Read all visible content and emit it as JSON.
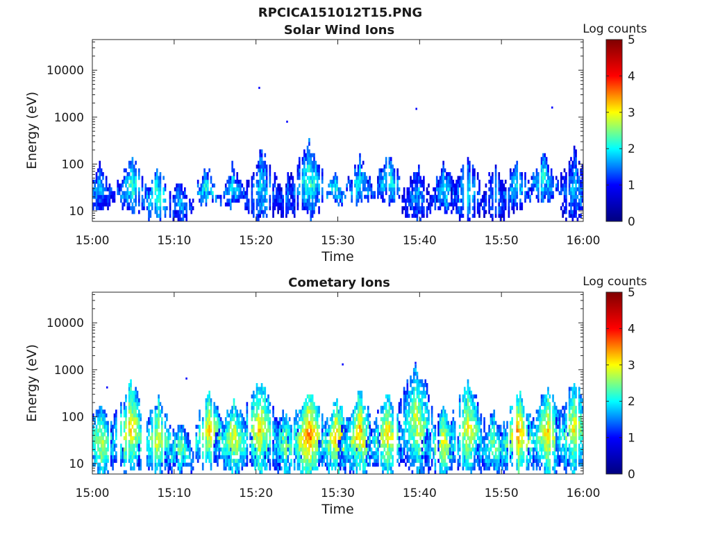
{
  "figure": {
    "title": "RPCICA151012T15.PNG"
  },
  "colormap": {
    "name": "jet",
    "stops": [
      "#00007f",
      "#0000ff",
      "#00ffff",
      "#ffff00",
      "#ff0000",
      "#7f0000"
    ]
  },
  "chart_data": [
    {
      "type": "heatmap",
      "title": "Solar Wind Ions",
      "xlabel": "Time",
      "ylabel": "Energy (eV)",
      "x_range": [
        "15:00",
        "16:00"
      ],
      "xticks": [
        "15:00",
        "15:10",
        "15:20",
        "15:30",
        "15:40",
        "15:50",
        "16:00"
      ],
      "y_scale": "log",
      "ylim": [
        6,
        45000
      ],
      "yticks": [
        {
          "value": 10,
          "label": "10"
        },
        {
          "value": 100,
          "label": "100"
        },
        {
          "value": 1000,
          "label": "1000"
        },
        {
          "value": 10000,
          "label": "10000"
        }
      ],
      "colorbar": {
        "label": "Log counts",
        "range": [
          0,
          5
        ],
        "ticks": [
          "0",
          "1",
          "2",
          "3",
          "4",
          "5"
        ]
      },
      "grid": false,
      "bursts": [
        {
          "t": 0.8,
          "e_lo": 10,
          "e_hi": 100,
          "peak": 1.8
        },
        {
          "t": 4.7,
          "e_lo": 10,
          "e_hi": 150,
          "peak": 2.3
        },
        {
          "t": 8.0,
          "e_lo": 6,
          "e_hi": 80,
          "peak": 2.4
        },
        {
          "t": 10.5,
          "e_lo": 6,
          "e_hi": 50,
          "peak": 1.8
        },
        {
          "t": 13.8,
          "e_lo": 15,
          "e_hi": 80,
          "peak": 2.2
        },
        {
          "t": 17.0,
          "e_lo": 12,
          "e_hi": 90,
          "peak": 2.0
        },
        {
          "t": 20.5,
          "e_lo": 6,
          "e_hi": 180,
          "peak": 2.0
        },
        {
          "t": 23.8,
          "e_lo": 8,
          "e_hi": 60,
          "peak": 1.6
        },
        {
          "t": 26.3,
          "e_lo": 8,
          "e_hi": 280,
          "peak": 2.3
        },
        {
          "t": 29.5,
          "e_lo": 15,
          "e_hi": 60,
          "peak": 2.1
        },
        {
          "t": 32.5,
          "e_lo": 15,
          "e_hi": 120,
          "peak": 2.1
        },
        {
          "t": 36.2,
          "e_lo": 15,
          "e_hi": 180,
          "peak": 2.2
        },
        {
          "t": 39.5,
          "e_lo": 6,
          "e_hi": 90,
          "peak": 1.7
        },
        {
          "t": 43.0,
          "e_lo": 10,
          "e_hi": 100,
          "peak": 2.0
        },
        {
          "t": 45.8,
          "e_lo": 6,
          "e_hi": 160,
          "peak": 2.0
        },
        {
          "t": 49.2,
          "e_lo": 6,
          "e_hi": 90,
          "peak": 1.7
        },
        {
          "t": 51.8,
          "e_lo": 10,
          "e_hi": 120,
          "peak": 2.0
        },
        {
          "t": 55.0,
          "e_lo": 15,
          "e_hi": 160,
          "peak": 2.2
        },
        {
          "t": 58.8,
          "e_lo": 6,
          "e_hi": 180,
          "peak": 1.8
        }
      ],
      "isolated_points": [
        {
          "t": 20.4,
          "e": 4200
        },
        {
          "t": 23.8,
          "e": 800
        },
        {
          "t": 39.6,
          "e": 1500
        },
        {
          "t": 56.2,
          "e": 1600
        }
      ]
    },
    {
      "type": "heatmap",
      "title": "Cometary Ions",
      "xlabel": "Time",
      "ylabel": "Energy (eV)",
      "x_range": [
        "15:00",
        "16:00"
      ],
      "xticks": [
        "15:00",
        "15:10",
        "15:20",
        "15:30",
        "15:40",
        "15:50",
        "16:00"
      ],
      "y_scale": "log",
      "ylim": [
        6,
        45000
      ],
      "yticks": [
        {
          "value": 10,
          "label": "10"
        },
        {
          "value": 100,
          "label": "100"
        },
        {
          "value": 1000,
          "label": "1000"
        },
        {
          "value": 10000,
          "label": "10000"
        }
      ],
      "colorbar": {
        "label": "Log counts",
        "range": [
          0,
          5
        ],
        "ticks": [
          "0",
          "1",
          "2",
          "3",
          "4",
          "5"
        ]
      },
      "grid": false,
      "bursts": [
        {
          "t": 1.0,
          "e_lo": 6,
          "e_hi": 200,
          "peak": 2.9
        },
        {
          "t": 4.6,
          "e_lo": 6,
          "e_hi": 500,
          "peak": 3.2
        },
        {
          "t": 7.9,
          "e_lo": 6,
          "e_hi": 250,
          "peak": 3.0
        },
        {
          "t": 10.6,
          "e_lo": 6,
          "e_hi": 80,
          "peak": 2.6
        },
        {
          "t": 14.1,
          "e_lo": 8,
          "e_hi": 300,
          "peak": 3.2
        },
        {
          "t": 17.2,
          "e_lo": 6,
          "e_hi": 250,
          "peak": 3.0
        },
        {
          "t": 20.3,
          "e_lo": 6,
          "e_hi": 600,
          "peak": 3.2
        },
        {
          "t": 23.5,
          "e_lo": 6,
          "e_hi": 150,
          "peak": 2.7
        },
        {
          "t": 26.4,
          "e_lo": 6,
          "e_hi": 400,
          "peak": 3.7
        },
        {
          "t": 29.8,
          "e_lo": 6,
          "e_hi": 200,
          "peak": 3.4
        },
        {
          "t": 32.5,
          "e_lo": 6,
          "e_hi": 300,
          "peak": 3.3
        },
        {
          "t": 36.0,
          "e_lo": 6,
          "e_hi": 300,
          "peak": 3.2
        },
        {
          "t": 39.5,
          "e_lo": 6,
          "e_hi": 1200,
          "peak": 2.9
        },
        {
          "t": 42.8,
          "e_lo": 6,
          "e_hi": 200,
          "peak": 3.0
        },
        {
          "t": 45.8,
          "e_lo": 6,
          "e_hi": 500,
          "peak": 3.1
        },
        {
          "t": 49.0,
          "e_lo": 6,
          "e_hi": 120,
          "peak": 2.6
        },
        {
          "t": 52.0,
          "e_lo": 6,
          "e_hi": 300,
          "peak": 3.5
        },
        {
          "t": 55.6,
          "e_lo": 6,
          "e_hi": 450,
          "peak": 3.2
        },
        {
          "t": 58.8,
          "e_lo": 6,
          "e_hi": 500,
          "peak": 3.0
        }
      ],
      "isolated_points": [
        {
          "t": 1.8,
          "e": 420
        },
        {
          "t": 11.5,
          "e": 650
        },
        {
          "t": 30.6,
          "e": 1300
        },
        {
          "t": 39.5,
          "e": 1400
        }
      ]
    }
  ]
}
